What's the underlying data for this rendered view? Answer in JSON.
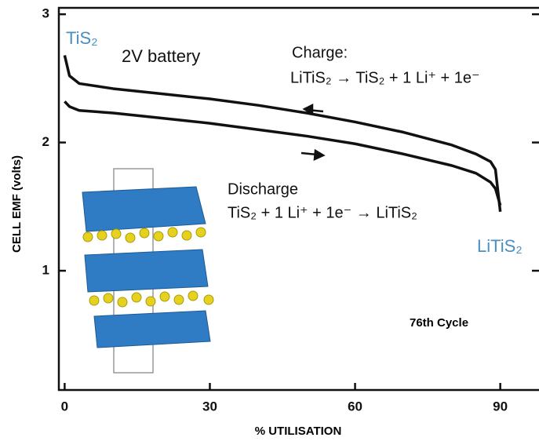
{
  "chart_data": {
    "type": "line",
    "x_label": "% UTILISATION",
    "y_label": "CELL EMF (volts)",
    "x": [
      0,
      1,
      3,
      10,
      20,
      30,
      40,
      50,
      60,
      70,
      80,
      85,
      88,
      89,
      90
    ],
    "series": [
      {
        "color": "#111111",
        "values": [
          2.68,
          2.52,
          2.46,
          2.42,
          2.38,
          2.34,
          2.29,
          2.23,
          2.16,
          2.08,
          1.98,
          1.91,
          1.85,
          1.79,
          1.46
        ]
      },
      {
        "color": "#111111",
        "values": [
          2.32,
          2.28,
          2.25,
          2.23,
          2.19,
          2.15,
          2.1,
          2.05,
          1.99,
          1.91,
          1.82,
          1.76,
          1.69,
          1.64,
          1.51
        ]
      }
    ],
    "xlim": [
      -1.2,
      98
    ],
    "ylim": [
      0.07,
      3.05
    ],
    "xticks": [
      0,
      30,
      60,
      90
    ],
    "yticks": [
      1,
      2,
      3
    ],
    "annotations": {
      "start": "TiS₂",
      "battery": "2V battery",
      "charge": "Charge:",
      "charge_reaction": "LiTiS₂ → TiS₂ + 1 Li⁺ + 1e⁻",
      "discharge": "Discharge",
      "discharge_reaction": "TiS₂ + 1 Li⁺ + 1e⁻ → LiTiS₂",
      "end": "LiTiS₂",
      "cycle": "76th Cycle"
    }
  }
}
